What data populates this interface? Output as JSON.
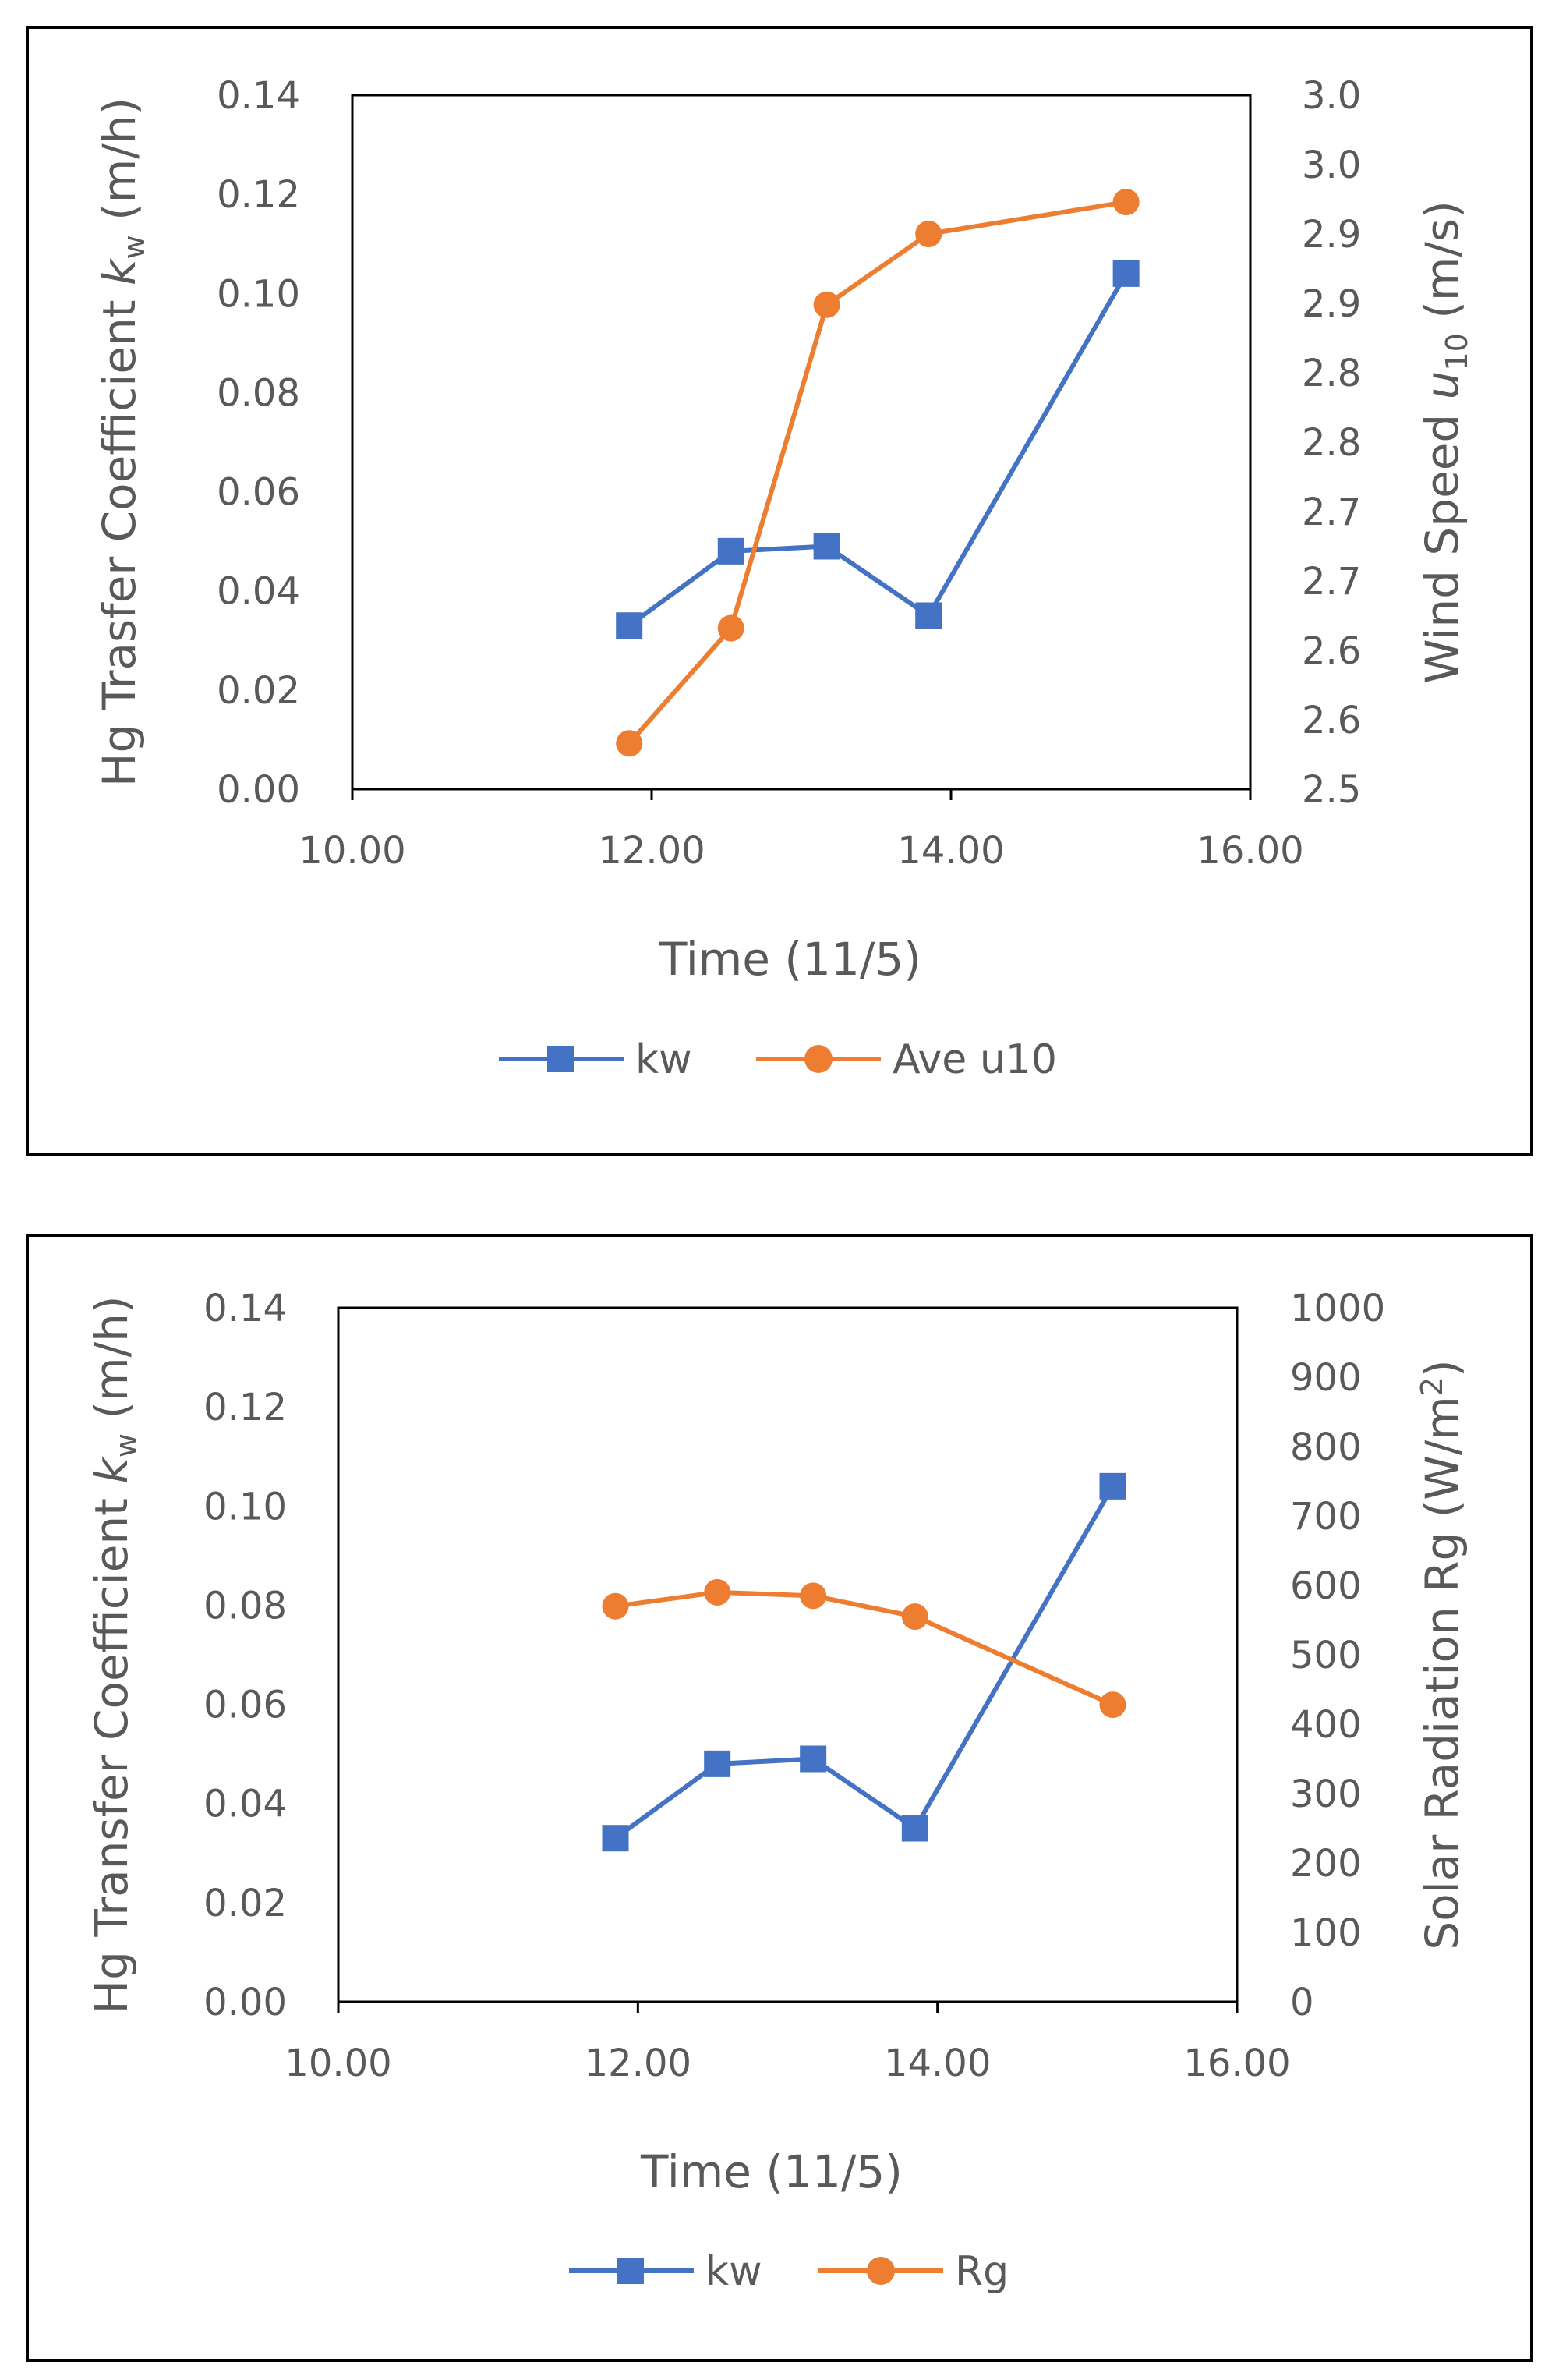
{
  "colors": {
    "kw": "#4472C4",
    "secondary": "#ED7D31",
    "text": "#595959"
  },
  "chart_data": [
    {
      "type": "line",
      "xlabel": "Time (11/5)",
      "ylabel_left": {
        "prefix": "Hg Trasfer Coefficient ",
        "var": "k",
        "sub": "w",
        "unit": " (m/h)"
      },
      "ylabel_right": {
        "prefix": "Wind Speed ",
        "var": "u",
        "sub": "10",
        "unit": " (m/s)"
      },
      "xlim": [
        10,
        16
      ],
      "x_ticks": [
        "10.00",
        "12.00",
        "14.00",
        "16.00"
      ],
      "ylim_left": [
        0,
        0.14
      ],
      "y_ticks_left": [
        "0.00",
        "0.02",
        "0.04",
        "0.06",
        "0.08",
        "0.10",
        "0.12",
        "0.14"
      ],
      "ylim_right": [
        2.5,
        3.0
      ],
      "y_ticks_right": [
        "2.5",
        "2.6",
        "2.6",
        "2.7",
        "2.7",
        "2.8",
        "2.8",
        "2.9",
        "2.9",
        "3.0",
        "3.0"
      ],
      "series": [
        {
          "name": "kw",
          "axis": "left",
          "marker": "square",
          "x": [
            11.85,
            12.53,
            13.17,
            13.85,
            15.17
          ],
          "values": [
            0.033,
            0.048,
            0.049,
            0.035,
            0.104
          ]
        },
        {
          "name": "Ave u10",
          "axis": "right",
          "marker": "circle",
          "x": [
            11.85,
            12.53,
            13.17,
            13.85,
            15.17
          ],
          "values": [
            2.533,
            2.616,
            2.849,
            2.9,
            2.923
          ]
        }
      ],
      "legend": [
        "kw",
        "Ave u10"
      ]
    },
    {
      "type": "line",
      "xlabel": "Time (11/5)",
      "ylabel_left": {
        "prefix": "Hg Transfer Coefficient ",
        "var": "k",
        "sub": "w",
        "unit": " (m/h)"
      },
      "ylabel_right": {
        "prefix": "Solar Radiation Rg (W/m",
        "sup": "2",
        "unit": ")"
      },
      "xlim": [
        10,
        16
      ],
      "x_ticks": [
        "10.00",
        "12.00",
        "14.00",
        "16.00"
      ],
      "ylim_left": [
        0,
        0.14
      ],
      "y_ticks_left": [
        "0.00",
        "0.02",
        "0.04",
        "0.06",
        "0.08",
        "0.10",
        "0.12",
        "0.14"
      ],
      "ylim_right": [
        0,
        1000
      ],
      "y_ticks_right": [
        "0",
        "100",
        "200",
        "300",
        "400",
        "500",
        "600",
        "700",
        "800",
        "900",
        "1000"
      ],
      "series": [
        {
          "name": "kw",
          "axis": "left",
          "marker": "square",
          "x": [
            11.85,
            12.53,
            13.17,
            13.85,
            15.17
          ],
          "values": [
            0.033,
            0.048,
            0.049,
            0.035,
            0.104
          ]
        },
        {
          "name": "Rg",
          "axis": "right",
          "marker": "circle",
          "x": [
            11.85,
            12.53,
            13.17,
            13.85,
            15.17
          ],
          "values": [
            570,
            590,
            585,
            555,
            428
          ]
        }
      ],
      "legend": [
        "kw",
        "Rg"
      ]
    }
  ]
}
